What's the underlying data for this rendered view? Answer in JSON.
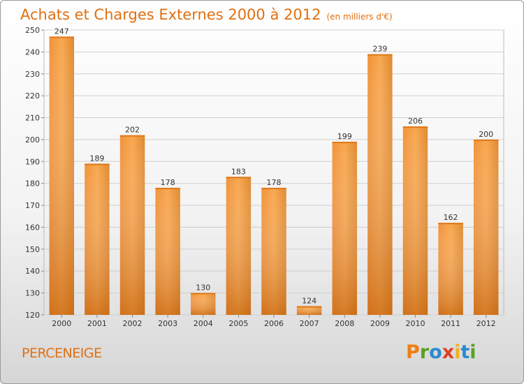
{
  "header": {
    "title": "Achats et Charges Externes 2000 à 2012",
    "unit": "(en milliers d'€)"
  },
  "footer": {
    "commune": "PERCENEIGE",
    "logo": "Proxiti"
  },
  "colors": {
    "title": "#e07010",
    "bar_light": "#f8a850",
    "bar_dark": "#cc6410",
    "logo_letters": [
      "#f07f10",
      "#5aa020",
      "#2a8ad0",
      "#e04020",
      "#f0b020",
      "#2a8ad0",
      "#5aa020"
    ]
  },
  "chart_data": {
    "type": "bar",
    "categories": [
      "2000",
      "2001",
      "2002",
      "2003",
      "2004",
      "2005",
      "2006",
      "2007",
      "2008",
      "2009",
      "2010",
      "2011",
      "2012"
    ],
    "values": [
      247,
      189,
      202,
      178,
      130,
      183,
      178,
      124,
      199,
      239,
      206,
      162,
      200
    ],
    "ylim": [
      120,
      250
    ],
    "yticks": [
      120,
      130,
      140,
      150,
      160,
      170,
      180,
      190,
      200,
      210,
      220,
      230,
      240,
      250
    ],
    "grid": true,
    "legend": "none"
  }
}
